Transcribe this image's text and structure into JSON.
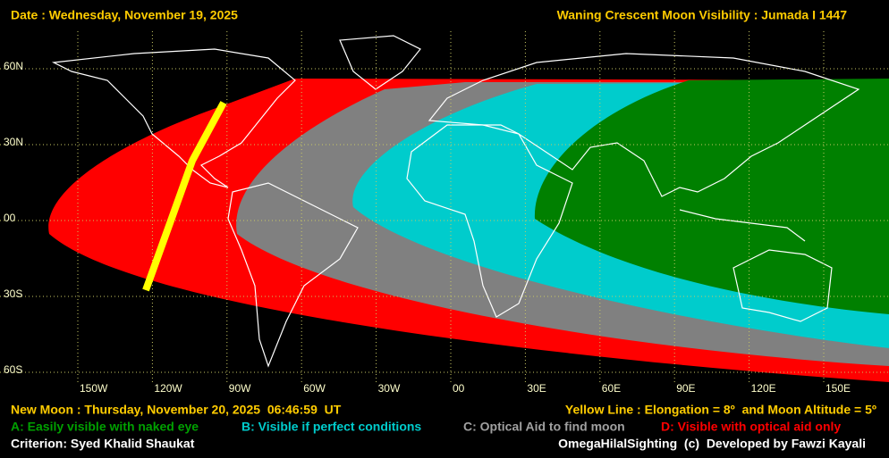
{
  "header": {
    "date": "Date : Wednesday, November 19, 2025",
    "title": "Waning Crescent Moon Visibility : Jumada I 1447"
  },
  "lat_labels": [
    "60N",
    "30N",
    "00",
    "30S",
    "60S"
  ],
  "lon_labels": [
    "150W",
    "120W",
    "90W",
    "60W",
    "30W",
    "00",
    "30E",
    "60E",
    "90E",
    "120E",
    "150E"
  ],
  "footer": {
    "new_moon": "New Moon : Thursday, November 20, 2025  06:46:59  UT",
    "yellow_line": "Yellow Line : Elongation = 8º  and Moon Altitude = 5º",
    "legend": [
      "A: Easily visible with naked eye",
      "B: Visible if perfect conditions",
      "C: Optical Aid to find moon",
      "D: Visible with optical aid only"
    ],
    "criterion": "Criterion: Syed Khalid Shaukat",
    "credit": "OmegaHilalSighting  (c)  Developed by Fawzi Kayali"
  }
}
